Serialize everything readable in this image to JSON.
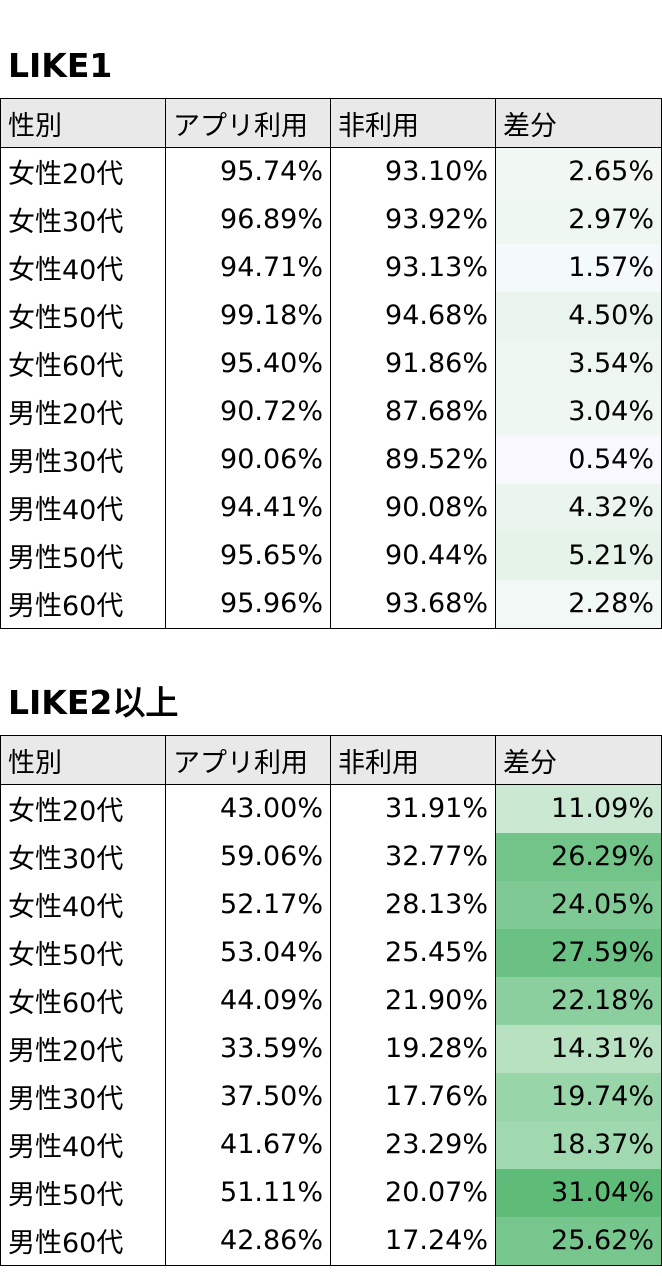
{
  "table1": {
    "title": "LIKE1",
    "headers": [
      "性別",
      "アプリ利用",
      "非利用",
      "差分"
    ],
    "rows": [
      {
        "label": "女性20代",
        "app": "95.74%",
        "non": "93.10%",
        "diff": "2.65%",
        "shade": "#f1f8f3"
      },
      {
        "label": "女性30代",
        "app": "96.89%",
        "non": "93.92%",
        "diff": "2.97%",
        "shade": "#eff7f1"
      },
      {
        "label": "女性40代",
        "app": "94.71%",
        "non": "93.13%",
        "diff": "1.57%",
        "shade": "#f4f9fb"
      },
      {
        "label": "女性50代",
        "app": "99.18%",
        "non": "94.68%",
        "diff": "4.50%",
        "shade": "#e9f4ec"
      },
      {
        "label": "女性60代",
        "app": "95.40%",
        "non": "91.86%",
        "diff": "3.54%",
        "shade": "#edf6ef"
      },
      {
        "label": "男性20代",
        "app": "90.72%",
        "non": "87.68%",
        "diff": "3.04%",
        "shade": "#eff7f1"
      },
      {
        "label": "男性30代",
        "app": "90.06%",
        "non": "89.52%",
        "diff": "0.54%",
        "shade": "#f8f8fe"
      },
      {
        "label": "男性40代",
        "app": "94.41%",
        "non": "90.08%",
        "diff": "4.32%",
        "shade": "#eaf5ed"
      },
      {
        "label": "男性50代",
        "app": "95.65%",
        "non": "90.44%",
        "diff": "5.21%",
        "shade": "#e6f3e9"
      },
      {
        "label": "男性60代",
        "app": "95.96%",
        "non": "93.68%",
        "diff": "2.28%",
        "shade": "#f2f8f5"
      }
    ]
  },
  "table2": {
    "title": "LIKE2以上",
    "headers": [
      "性別",
      "アプリ利用",
      "非利用",
      "差分"
    ],
    "rows": [
      {
        "label": "女性20代",
        "app": "43.00%",
        "non": "31.91%",
        "diff": "11.09%",
        "shade": "#cbe8d2"
      },
      {
        "label": "女性30代",
        "app": "59.06%",
        "non": "32.77%",
        "diff": "26.29%",
        "shade": "#72c489"
      },
      {
        "label": "女性40代",
        "app": "52.17%",
        "non": "28.13%",
        "diff": "24.05%",
        "shade": "#7fca94"
      },
      {
        "label": "女性50代",
        "app": "53.04%",
        "non": "25.45%",
        "diff": "27.59%",
        "shade": "#6bc183"
      },
      {
        "label": "女性60代",
        "app": "44.09%",
        "non": "21.90%",
        "diff": "22.18%",
        "shade": "#8acf9d"
      },
      {
        "label": "男性20代",
        "app": "33.59%",
        "non": "19.28%",
        "diff": "14.31%",
        "shade": "#b8e1c2"
      },
      {
        "label": "男性30代",
        "app": "37.50%",
        "non": "17.76%",
        "diff": "19.74%",
        "shade": "#98d5a9"
      },
      {
        "label": "男性40代",
        "app": "41.67%",
        "non": "23.29%",
        "diff": "18.37%",
        "shade": "#a0d9af"
      },
      {
        "label": "男性50代",
        "app": "51.11%",
        "non": "20.07%",
        "diff": "31.04%",
        "shade": "#5fbc78"
      },
      {
        "label": "男性60代",
        "app": "42.86%",
        "non": "17.24%",
        "diff": "25.62%",
        "shade": "#77c68d"
      }
    ]
  }
}
